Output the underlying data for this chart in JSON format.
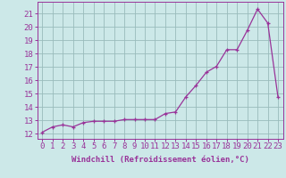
{
  "x": [
    0,
    1,
    2,
    3,
    4,
    5,
    6,
    7,
    8,
    9,
    10,
    11,
    12,
    13,
    14,
    15,
    16,
    17,
    18,
    19,
    20,
    21,
    22,
    23
  ],
  "y": [
    12.1,
    12.5,
    12.65,
    12.5,
    12.82,
    12.92,
    12.92,
    12.92,
    13.05,
    13.05,
    13.05,
    13.05,
    13.5,
    13.62,
    14.75,
    15.62,
    16.6,
    17.05,
    18.3,
    18.3,
    19.75,
    21.35,
    20.3,
    14.72
  ],
  "line_color": "#993399",
  "marker": "+",
  "bg_color": "#cce8e8",
  "grid_color": "#99bbbb",
  "xlabel": "Windchill (Refroidissement éolien,°C)",
  "ylabel_ticks": [
    12,
    13,
    14,
    15,
    16,
    17,
    18,
    19,
    20,
    21
  ],
  "ylim": [
    11.6,
    21.9
  ],
  "xlim": [
    -0.5,
    23.5
  ],
  "xtick_labels": [
    "0",
    "1",
    "2",
    "3",
    "4",
    "5",
    "6",
    "7",
    "8",
    "9",
    "10",
    "11",
    "12",
    "13",
    "14",
    "15",
    "16",
    "17",
    "18",
    "19",
    "20",
    "21",
    "22",
    "23"
  ],
  "xlabel_fontsize": 6.5,
  "tick_fontsize": 6.5,
  "line_width": 0.9,
  "marker_size": 3.5
}
